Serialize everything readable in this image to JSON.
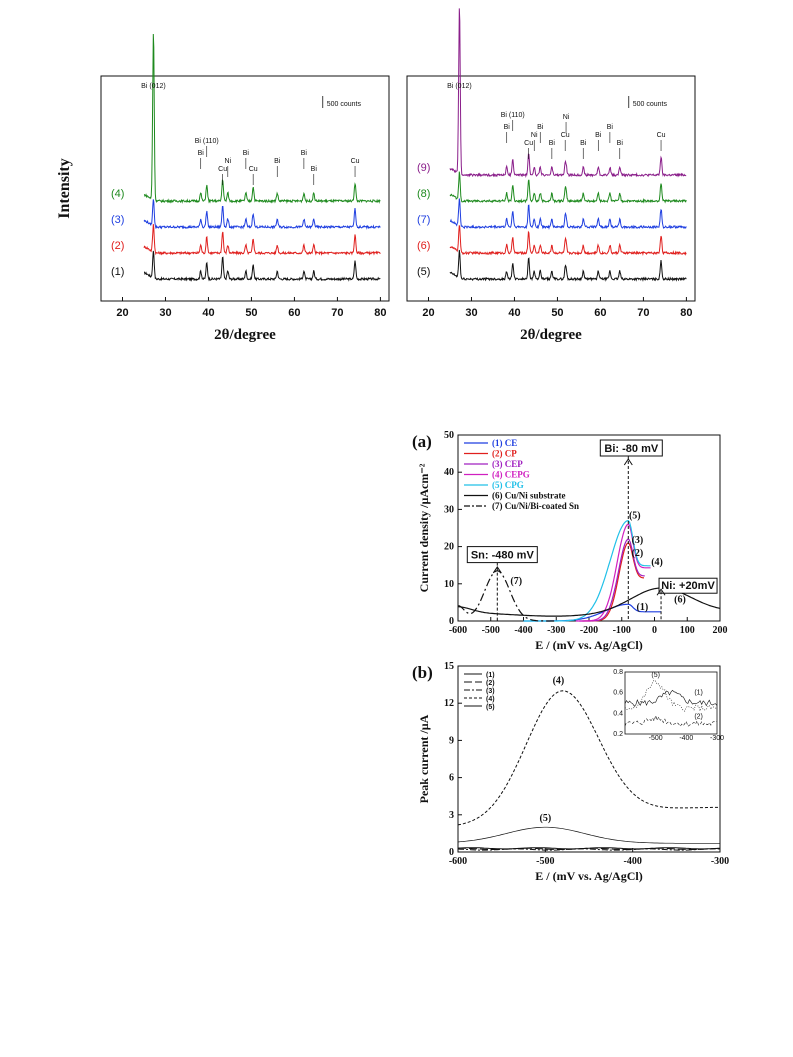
{
  "xrd_left": {
    "type": "line",
    "xlabel": "2θ/degree",
    "ylabel": "Intensity",
    "xlim": [
      15,
      82
    ],
    "xticks": [
      20,
      30,
      40,
      50,
      60,
      70,
      80
    ],
    "scale_bar": "500 counts",
    "curves": [
      {
        "label": "(1)",
        "color": "#111111",
        "baseline": 0
      },
      {
        "label": "(2)",
        "color": "#e0201e",
        "baseline": 1
      },
      {
        "label": "(3)",
        "color": "#1f3fe0",
        "baseline": 2
      },
      {
        "label": "(4)",
        "color": "#1e8a1e",
        "baseline": 3
      }
    ],
    "peaks": [
      {
        "x": 27.2,
        "text": "Bi (012)"
      },
      {
        "x": 39.6,
        "text": "Bi (110)"
      },
      {
        "x": 38.2,
        "text": "Bi"
      },
      {
        "x": 43.3,
        "text": "Cu"
      },
      {
        "x": 44.5,
        "text": "Ni"
      },
      {
        "x": 48.7,
        "text": "Bi"
      },
      {
        "x": 50.4,
        "text": "Cu"
      },
      {
        "x": 56.0,
        "text": "Bi"
      },
      {
        "x": 62.2,
        "text": "Bi"
      },
      {
        "x": 64.5,
        "text": "Bi"
      },
      {
        "x": 74.1,
        "text": "Cu"
      }
    ]
  },
  "xrd_right": {
    "type": "line",
    "xlabel": "2θ/degree",
    "xlim": [
      15,
      82
    ],
    "xticks": [
      20,
      30,
      40,
      50,
      60,
      70,
      80
    ],
    "scale_bar": "500 counts",
    "curves": [
      {
        "label": "(5)",
        "color": "#111111",
        "baseline": 0
      },
      {
        "label": "(6)",
        "color": "#e0201e",
        "baseline": 1
      },
      {
        "label": "(7)",
        "color": "#1f3fe0",
        "baseline": 2
      },
      {
        "label": "(8)",
        "color": "#1e8a1e",
        "baseline": 3
      },
      {
        "label": "(9)",
        "color": "#8a1e8a",
        "baseline": 4
      }
    ],
    "peaks": [
      {
        "x": 27.2,
        "text": "Bi (012)"
      },
      {
        "x": 39.6,
        "text": "Bi (110)"
      },
      {
        "x": 38.2,
        "text": "Bi"
      },
      {
        "x": 43.3,
        "text": "Cu"
      },
      {
        "x": 44.6,
        "text": "Ni"
      },
      {
        "x": 46.0,
        "text": "Bi"
      },
      {
        "x": 48.7,
        "text": "Bi"
      },
      {
        "x": 51.8,
        "text": "Cu"
      },
      {
        "x": 52.0,
        "text": "Ni"
      },
      {
        "x": 56.0,
        "text": "Bi"
      },
      {
        "x": 59.5,
        "text": "Bi"
      },
      {
        "x": 62.2,
        "text": "Bi"
      },
      {
        "x": 64.5,
        "text": "Bi"
      },
      {
        "x": 74.1,
        "text": "Cu"
      }
    ]
  },
  "panel_a": {
    "type": "line",
    "panel_label": "(a)",
    "xlabel": "E / (mV vs. Ag/AgCl)",
    "ylabel": "Current density /µAcm⁻²",
    "xlim": [
      -600,
      200
    ],
    "ylim": [
      0,
      50
    ],
    "xticks": [
      -600,
      -500,
      -400,
      -300,
      -200,
      -100,
      0,
      100,
      200
    ],
    "yticks": [
      0,
      10,
      20,
      30,
      40,
      50
    ],
    "legend": [
      {
        "text": "(1) CE",
        "color": "#1f3fe0",
        "dash": "solid"
      },
      {
        "text": "(2) CP",
        "color": "#e0201e",
        "dash": "solid"
      },
      {
        "text": "(3) CEP",
        "color": "#a020c0",
        "dash": "solid"
      },
      {
        "text": "(4) CEPG",
        "color": "#d020c0",
        "dash": "solid"
      },
      {
        "text": "(5) CPG",
        "color": "#20c0e8",
        "dash": "solid"
      },
      {
        "text": "(6) Cu/Ni substrate",
        "color": "#111111",
        "dash": "solid"
      },
      {
        "text": "(7) Cu/Ni/Bi-coated Sn",
        "color": "#111111",
        "dash": "dashdot"
      }
    ],
    "annotations": [
      {
        "text": "Bi: -80 mV",
        "x": -80
      },
      {
        "text": "Sn: -480 mV",
        "x": -480
      },
      {
        "text": "Ni: +20mV",
        "x": 20
      }
    ],
    "curve_labels": [
      "(5)",
      "(3)",
      "(2)",
      "(4)",
      "(1)",
      "(6)",
      "(7)"
    ],
    "series": [
      {
        "name": "(1)",
        "color": "#1f3fe0",
        "peak_x": -80,
        "peak_y": 4.5,
        "x0": -400,
        "x1": 20,
        "width": 70
      },
      {
        "name": "(2)",
        "color": "#e0201e",
        "peak_x": -80,
        "peak_y": 21,
        "x0": -220,
        "x1": -30,
        "width": 28
      },
      {
        "name": "(3)",
        "color": "#a020c0",
        "peak_x": -80,
        "peak_y": 22,
        "x0": -230,
        "x1": -30,
        "width": 30
      },
      {
        "name": "(4)",
        "color": "#d020c0",
        "peak_x": -80,
        "peak_y": 26,
        "x0": -240,
        "x1": -10,
        "width": 34
      },
      {
        "name": "(5)",
        "color": "#20c0e8",
        "peak_x": -80,
        "peak_y": 27,
        "x0": -400,
        "x1": -10,
        "width": 55
      },
      {
        "name": "(6)",
        "color": "#111111",
        "peak_x": 20,
        "peak_y": 6.5,
        "x0": -600,
        "x1": 200,
        "width": 90
      },
      {
        "name": "(7)",
        "color": "#111111",
        "peak_x": -480,
        "peak_y": 13.5,
        "x0": -600,
        "x1": -300,
        "width": 38
      }
    ]
  },
  "panel_b": {
    "type": "line",
    "panel_label": "(b)",
    "xlabel": "E / (mV vs. Ag/AgCl)",
    "ylabel": "Peak current /µA",
    "xlim": [
      -600,
      -300
    ],
    "ylim": [
      0,
      15
    ],
    "xticks": [
      -600,
      -500,
      -400,
      -300
    ],
    "yticks": [
      0,
      3,
      6,
      9,
      12,
      15
    ],
    "legend": [
      "(1)",
      "(2)",
      "(3)",
      "(4)",
      "(5)"
    ],
    "curve_labels": [
      "(4)",
      "(5)"
    ],
    "series": [
      {
        "name": "(1)",
        "peak_x": -500,
        "peak_y": 0.3
      },
      {
        "name": "(2)",
        "peak_x": -500,
        "peak_y": 0.25
      },
      {
        "name": "(3)",
        "peak_x": -500,
        "peak_y": 0.2
      },
      {
        "name": "(4)",
        "peak_x": -480,
        "peak_y": 13.0
      },
      {
        "name": "(5)",
        "peak_x": -500,
        "peak_y": 2.0
      }
    ],
    "inset": {
      "xlim": [
        -600,
        -300
      ],
      "ylim": [
        0.2,
        0.8
      ],
      "xticks": [
        -500,
        -400,
        -300
      ],
      "yticks": [
        0.2,
        0.4,
        0.6,
        0.8
      ],
      "curve_labels": [
        "(5)",
        "(1)",
        "(2)"
      ]
    }
  }
}
